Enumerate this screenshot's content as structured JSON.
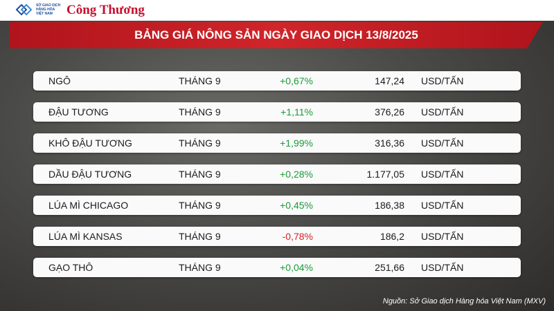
{
  "header": {
    "logo_lines": [
      "SỞ GIAO DỊCH",
      "HÀNG HÓA",
      "VIỆT NAM"
    ],
    "brand": "Công Thương"
  },
  "title": "BẢNG GIÁ NÔNG SẢN NGÀY GIAO DỊCH 13/8/2025",
  "table": {
    "rows": [
      [
        "NGÔ",
        "THÁNG 9",
        "+0,67%",
        "147,24",
        "USD/TẤN"
      ],
      [
        "ĐẬU TƯƠNG",
        "THÁNG 9",
        "+1,11%",
        "376,26",
        "USD/TẤN"
      ],
      [
        "KHÔ ĐẬU TƯƠNG",
        "THÁNG 9",
        "+1,99%",
        "316,36",
        "USD/TẤN"
      ],
      [
        "DẦU ĐẬU TƯƠNG",
        "THÁNG 9",
        "+0,28%",
        "1.177,05",
        "USD/TẤN"
      ],
      [
        "LÚA MÌ CHICAGO",
        "THÁNG 9",
        "+0,45%",
        "186,38",
        "USD/TẤN"
      ],
      [
        "LÚA MÌ KANSAS",
        "THÁNG 9",
        "-0,78%",
        "186,2",
        "USD/TẤN"
      ],
      [
        "GẠO THÔ",
        "THÁNG 9",
        "+0,04%",
        "251,66",
        "USD/TẤN"
      ]
    ]
  },
  "source": "Nguồn: Sở Giao dịch Hàng hóa Việt Nam (MXV)"
}
